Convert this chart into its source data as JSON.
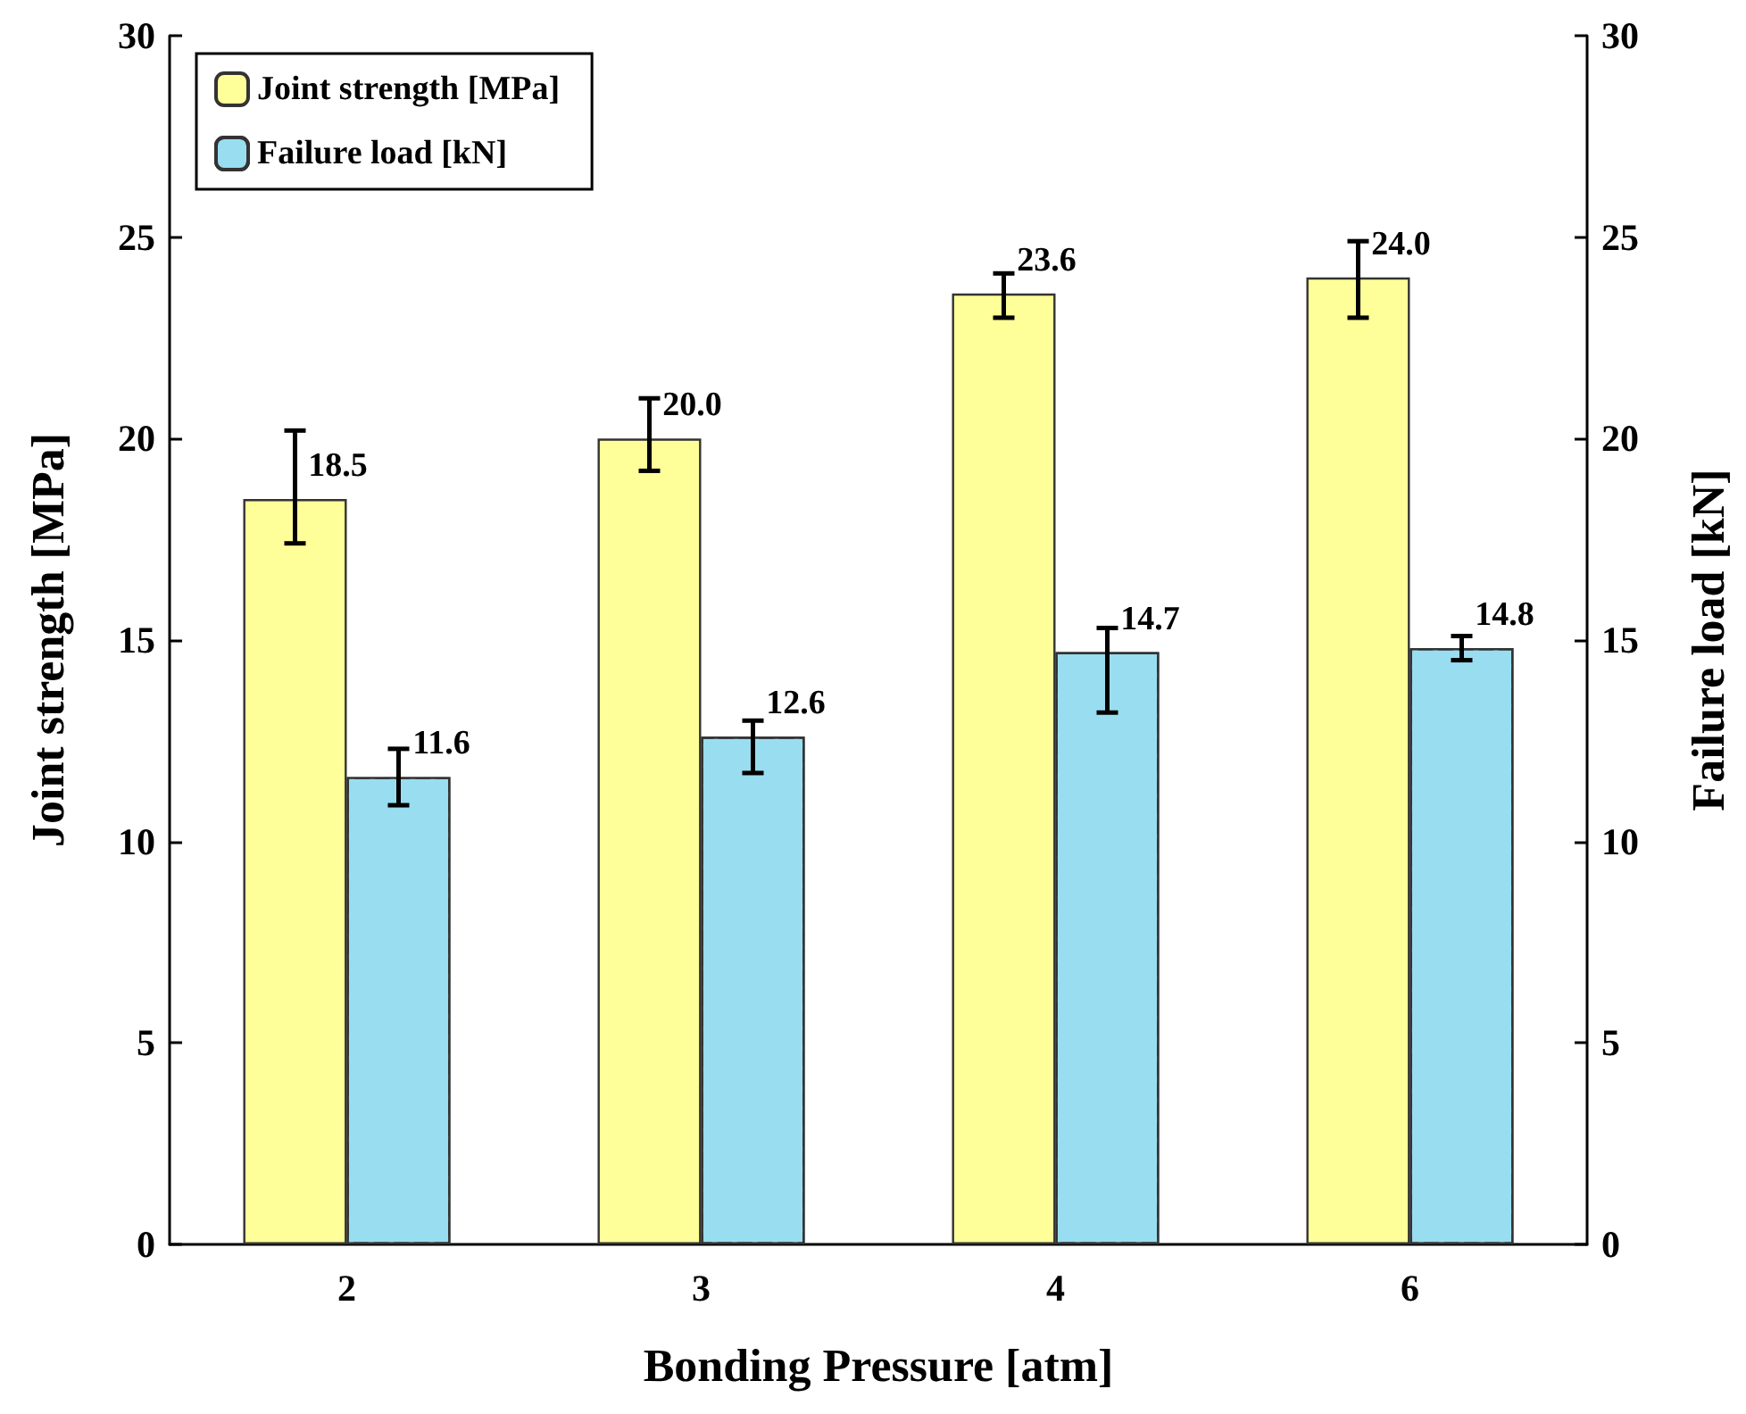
{
  "chart_data": {
    "type": "bar",
    "xlabel": "Bonding Pressure [atm]",
    "ylabel": "Joint strength [MPa]",
    "y2label": "Failure load [kN]",
    "categories": [
      "2",
      "3",
      "4",
      "6"
    ],
    "series": [
      {
        "name": "Joint strength [MPa]",
        "color": "#ffff99",
        "values": [
          18.5,
          20.0,
          23.6,
          24.0
        ],
        "value_labels": [
          "18.5",
          "20.0",
          "23.6",
          "24.0"
        ],
        "errors": [
          [
            17.4,
            20.2
          ],
          [
            19.2,
            21.0
          ],
          [
            23.0,
            24.1
          ],
          [
            23.0,
            24.9
          ]
        ]
      },
      {
        "name": "Failure load [kN]",
        "color": "#99ddf0",
        "values": [
          11.6,
          12.6,
          14.7,
          14.8
        ],
        "errors": [
          [
            10.9,
            12.3
          ],
          [
            11.7,
            13.0
          ],
          [
            13.2,
            15.3
          ],
          [
            14.5,
            15.1
          ]
        ]
      }
    ],
    "ylim": [
      0,
      30
    ],
    "yticks": [
      0,
      5,
      10,
      15,
      20,
      25,
      30
    ],
    "y2lim": [
      0,
      30
    ],
    "y2ticks": [
      0,
      5,
      10,
      15,
      20,
      25,
      30
    ],
    "data_labels": true,
    "legend": "top left",
    "grid": false
  }
}
